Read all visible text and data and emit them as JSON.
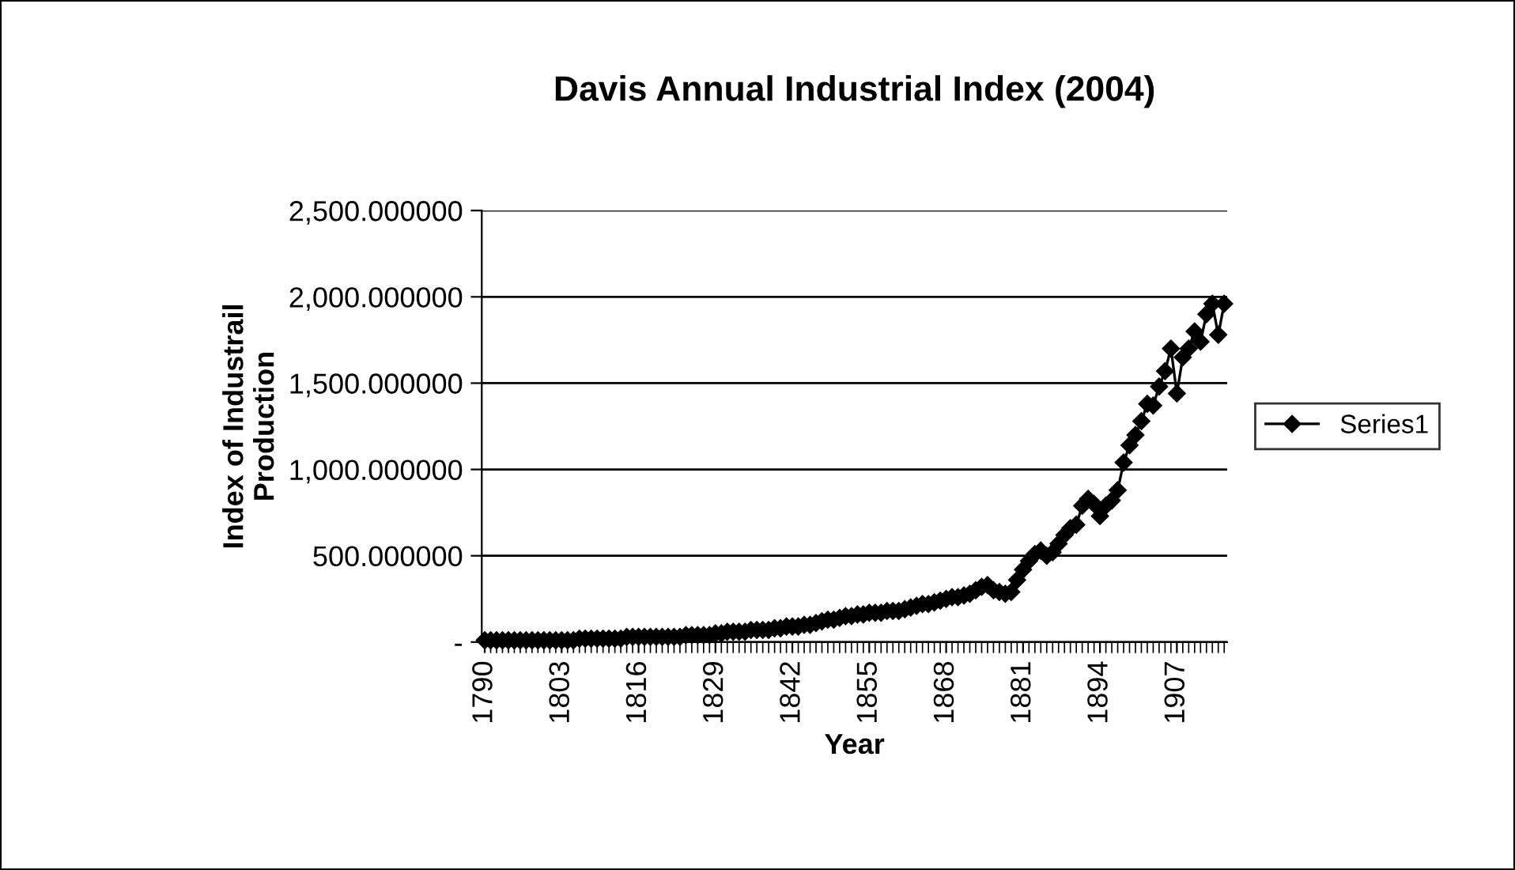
{
  "chart_data": {
    "type": "line",
    "title": "Davis Annual Industrial Index (2004)",
    "xlabel": "Year",
    "ylabel": "Index of Industrail\nProduction",
    "x": [
      1790,
      1791,
      1792,
      1793,
      1794,
      1795,
      1796,
      1797,
      1798,
      1799,
      1800,
      1801,
      1802,
      1803,
      1804,
      1805,
      1806,
      1807,
      1808,
      1809,
      1810,
      1811,
      1812,
      1813,
      1814,
      1815,
      1816,
      1817,
      1818,
      1819,
      1820,
      1821,
      1822,
      1823,
      1824,
      1825,
      1826,
      1827,
      1828,
      1829,
      1830,
      1831,
      1832,
      1833,
      1834,
      1835,
      1836,
      1837,
      1838,
      1839,
      1840,
      1841,
      1842,
      1843,
      1844,
      1845,
      1846,
      1847,
      1848,
      1849,
      1850,
      1851,
      1852,
      1853,
      1854,
      1855,
      1856,
      1857,
      1858,
      1859,
      1860,
      1861,
      1862,
      1863,
      1864,
      1865,
      1866,
      1867,
      1868,
      1869,
      1870,
      1871,
      1872,
      1873,
      1874,
      1875,
      1876,
      1877,
      1878,
      1879,
      1880,
      1881,
      1882,
      1883,
      1884,
      1885,
      1886,
      1887,
      1888,
      1889,
      1890,
      1891,
      1892,
      1893,
      1894,
      1895,
      1896,
      1897,
      1898,
      1899,
      1900,
      1901,
      1902,
      1903,
      1904,
      1905,
      1906,
      1907,
      1908,
      1909,
      1910,
      1911,
      1912,
      1913,
      1914,
      1915
    ],
    "series": [
      {
        "name": "Series1",
        "color": "#000000",
        "values": [
          10,
          10,
          10,
          10,
          10,
          10,
          10,
          10,
          10,
          10,
          10,
          10,
          10,
          10,
          10,
          10,
          20,
          20,
          20,
          20,
          20,
          20,
          20,
          20,
          30,
          30,
          30,
          30,
          30,
          30,
          30,
          30,
          30,
          30,
          40,
          40,
          40,
          40,
          40,
          50,
          50,
          60,
          60,
          60,
          60,
          70,
          70,
          70,
          70,
          80,
          80,
          90,
          90,
          90,
          100,
          100,
          110,
          120,
          130,
          130,
          140,
          150,
          150,
          160,
          160,
          170,
          170,
          170,
          180,
          180,
          180,
          190,
          200,
          210,
          220,
          220,
          230,
          240,
          250,
          260,
          260,
          270,
          280,
          300,
          320,
          330,
          300,
          290,
          280,
          290,
          360,
          420,
          470,
          510,
          530,
          500,
          520,
          570,
          620,
          660,
          680,
          790,
          830,
          800,
          730,
          790,
          820,
          880,
          1040,
          1140,
          1200,
          1280,
          1380,
          1370,
          1480,
          1570,
          1700,
          1440,
          1650,
          1700,
          1800,
          1740,
          1900,
          1960,
          1780,
          1960
        ]
      }
    ],
    "xlim": [
      1789.5,
      1915.5
    ],
    "xticks": [
      1790,
      1803,
      1816,
      1829,
      1842,
      1855,
      1868,
      1881,
      1894,
      1907
    ],
    "ylim": [
      0,
      2500
    ],
    "yticks": [
      {
        "value": 0,
        "label": "-"
      },
      {
        "value": 500,
        "label": "500.000000"
      },
      {
        "value": 1000,
        "label": "1,000.000000"
      },
      {
        "value": 1500,
        "label": "1,500.000000"
      },
      {
        "value": 2000,
        "label": "2,000.000000"
      },
      {
        "value": 2500,
        "label": "2,500.000000"
      }
    ],
    "grid": "y",
    "legend": "right",
    "marker": "diamond",
    "line_style": "solid"
  }
}
